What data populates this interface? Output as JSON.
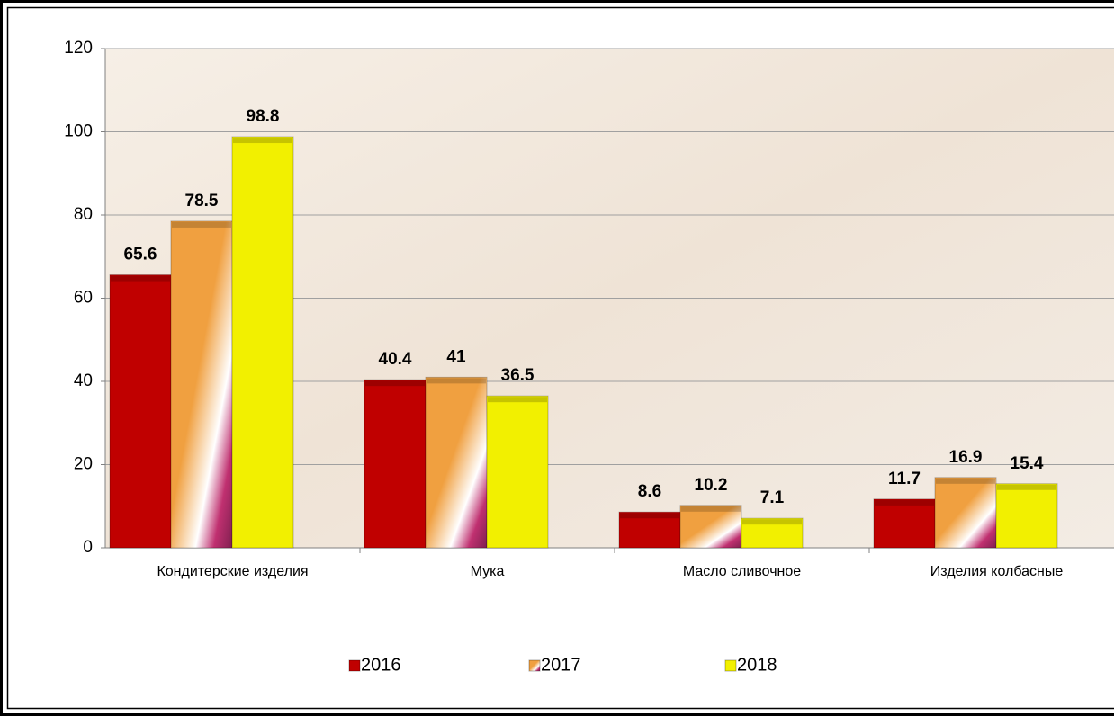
{
  "chart_data": {
    "type": "bar",
    "categories": [
      "Кондитерские изделия",
      "Мука",
      "Масло сливочное",
      "Изделия колбасные"
    ],
    "series": [
      {
        "name": "2016",
        "color": "#c00000",
        "values": [
          65.6,
          40.4,
          8.6,
          11.7
        ]
      },
      {
        "name": "2017",
        "color": "#f0a040",
        "values": [
          78.5,
          41,
          10.2,
          16.9
        ]
      },
      {
        "name": "2018",
        "color": "#f2f000",
        "values": [
          98.8,
          36.5,
          7.1,
          15.4
        ]
      }
    ],
    "ylim": [
      0,
      120
    ],
    "yticks": [
      0,
      20,
      40,
      60,
      80,
      100,
      120
    ],
    "grid": true,
    "legend": "bottom"
  }
}
